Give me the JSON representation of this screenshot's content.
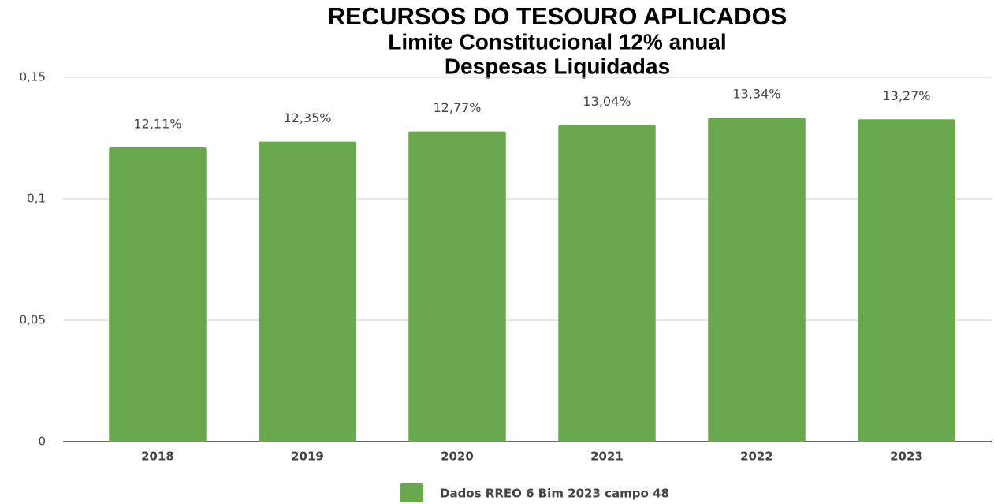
{
  "chart_data": {
    "type": "bar",
    "title": "RECURSOS DO TESOURO APLICADOS",
    "subtitle": [
      "Limite Constitucional 12% anual",
      "Despesas Liquidadas"
    ],
    "categories": [
      "2018",
      "2019",
      "2020",
      "2021",
      "2022",
      "2023"
    ],
    "series": [
      {
        "name": "Dados RREO 6 Bim 2023 campo 48",
        "color": "#6aa84f",
        "values": [
          0.1211,
          0.1235,
          0.1277,
          0.1304,
          0.1334,
          0.1327
        ],
        "value_labels": [
          "12,11%",
          "12,35%",
          "12,77%",
          "13,04%",
          "13,34%",
          "13,27%"
        ]
      }
    ],
    "ylim": [
      0,
      0.15
    ],
    "yticks": [
      0,
      {
        "value": 0.05,
        "label": "0,05"
      },
      {
        "value": 0.1,
        "label": "0,1"
      },
      {
        "value": 0.15,
        "label": "0,15"
      }
    ],
    "grid": true,
    "legend": "bottom"
  }
}
